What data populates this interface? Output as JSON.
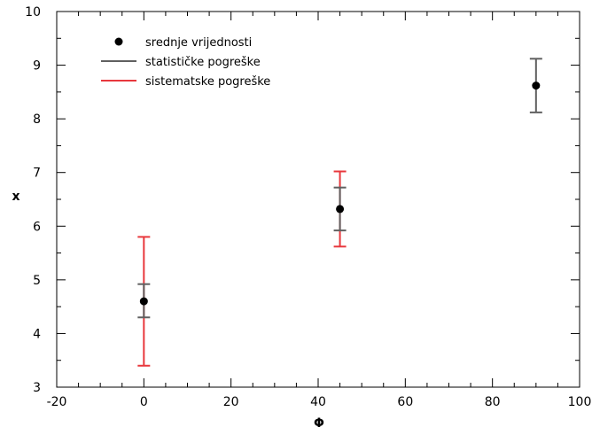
{
  "chart_data": {
    "type": "scatter",
    "xlabel": "Φ",
    "ylabel": "x",
    "xlim": [
      -20,
      100
    ],
    "ylim": [
      3,
      10
    ],
    "x_ticks": [
      -20,
      0,
      20,
      40,
      60,
      80,
      100
    ],
    "y_ticks": [
      3,
      4,
      5,
      6,
      7,
      8,
      9,
      10
    ],
    "x_minor_step": 5,
    "y_minor_step": 0.5,
    "grid": false,
    "legend_position": "top-left",
    "legend": [
      {
        "label": "srednje vrijednosti",
        "kind": "marker",
        "color": "#000000"
      },
      {
        "label": "statističke pogreške",
        "kind": "line",
        "color": "#606060"
      },
      {
        "label": "sistematske pogreške",
        "kind": "line",
        "color": "#e8383d"
      }
    ],
    "series": [
      {
        "name": "srednje vrijednosti",
        "points": [
          {
            "x": 0,
            "y": 4.6
          },
          {
            "x": 45,
            "y": 6.32
          },
          {
            "x": 90,
            "y": 8.62
          }
        ]
      }
    ],
    "statistical_errors": [
      {
        "x": 0,
        "low": 4.3,
        "high": 4.92
      },
      {
        "x": 45,
        "low": 5.92,
        "high": 6.72
      },
      {
        "x": 90,
        "low": 8.12,
        "high": 9.12
      }
    ],
    "systematic_errors": [
      {
        "x": 0,
        "low": 3.4,
        "high": 5.8
      },
      {
        "x": 45,
        "low": 5.62,
        "high": 7.02
      }
    ],
    "colors": {
      "marker": "#000000",
      "statistical": "#606060",
      "systematic": "#e8383d"
    }
  }
}
